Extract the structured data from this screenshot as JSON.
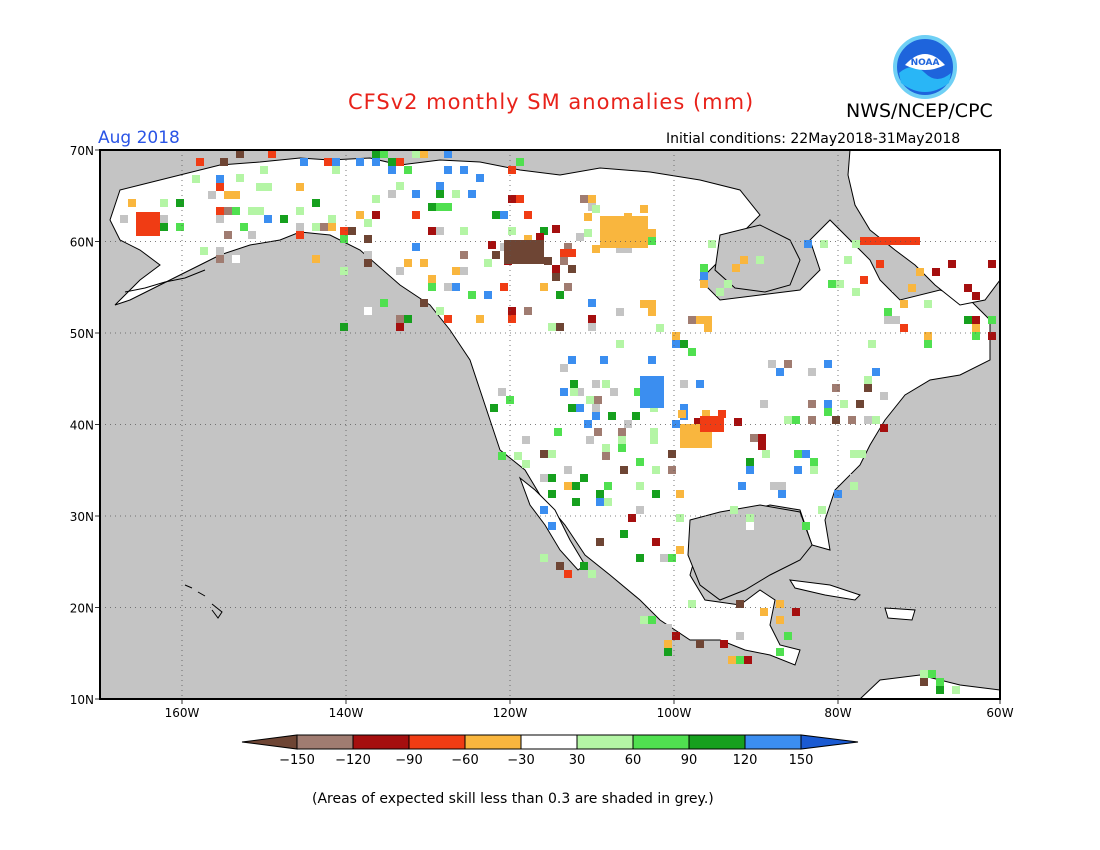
{
  "header": {
    "title": "CFSv2 monthly SM anomalies (mm)",
    "agency": "NWS/NCEP/CPC",
    "logo_text": "NOAA",
    "valid_month": "Aug 2018",
    "initial_conditions": "Initial conditions: 22May2018-31May2018"
  },
  "colors": {
    "title": "#e8221a",
    "valid_month": "#2a54e6",
    "ocean_skill_grey": "#c4c4c4",
    "land": "#ffffff"
  },
  "map": {
    "lat_labels": [
      "70N",
      "60N",
      "50N",
      "40N",
      "30N",
      "20N",
      "10N"
    ],
    "lon_labels": [
      "160W",
      "140W",
      "120W",
      "100W",
      "80W",
      "60W"
    ]
  },
  "legend": {
    "ticks": [
      "-150",
      "-120",
      "-90",
      "-60",
      "-30",
      "30",
      "60",
      "90",
      "120",
      "150"
    ],
    "colors": [
      "#6e4534",
      "#a07c71",
      "#a50f0f",
      "#f03c14",
      "#f9b63e",
      "#ffffff",
      "#b4f5a5",
      "#50e050",
      "#16a01e",
      "#3b8ef0",
      "#1a5ad2"
    ]
  },
  "footnote": "(Areas of expected skill less than 0.3 are shaded in grey.)"
}
